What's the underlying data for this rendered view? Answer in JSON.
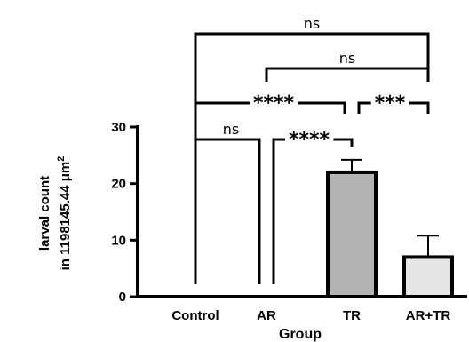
{
  "chart_data": {
    "type": "bar",
    "categories": [
      "Control",
      "AR",
      "TR",
      "AR+TR"
    ],
    "values": [
      0,
      0,
      22,
      7
    ],
    "errors": [
      0,
      0,
      2.2,
      3.8
    ],
    "bar_colors": [
      "#ffffff",
      "#ffffff",
      "#b3b3b3",
      "#e6e6e6"
    ],
    "xlabel": "Group",
    "ylabel_line1": "larval count",
    "ylabel_line2_prefix": "in 1198145.44 ",
    "ylabel_unit": "μm",
    "ylabel_exp": "2",
    "ylim": [
      0,
      30
    ],
    "yticks": [
      "0",
      "10",
      "20",
      "30"
    ],
    "comparisons": [
      {
        "from": 0,
        "to": 3,
        "label": "ns"
      },
      {
        "from": 1,
        "to": 3,
        "label": "ns"
      },
      {
        "from": 0,
        "to": 2,
        "label": "****"
      },
      {
        "from": 2,
        "to": 3,
        "label": "***"
      },
      {
        "from": 0,
        "to": 1,
        "label": "ns"
      },
      {
        "from": 1,
        "to": 2,
        "label": "****"
      }
    ]
  }
}
